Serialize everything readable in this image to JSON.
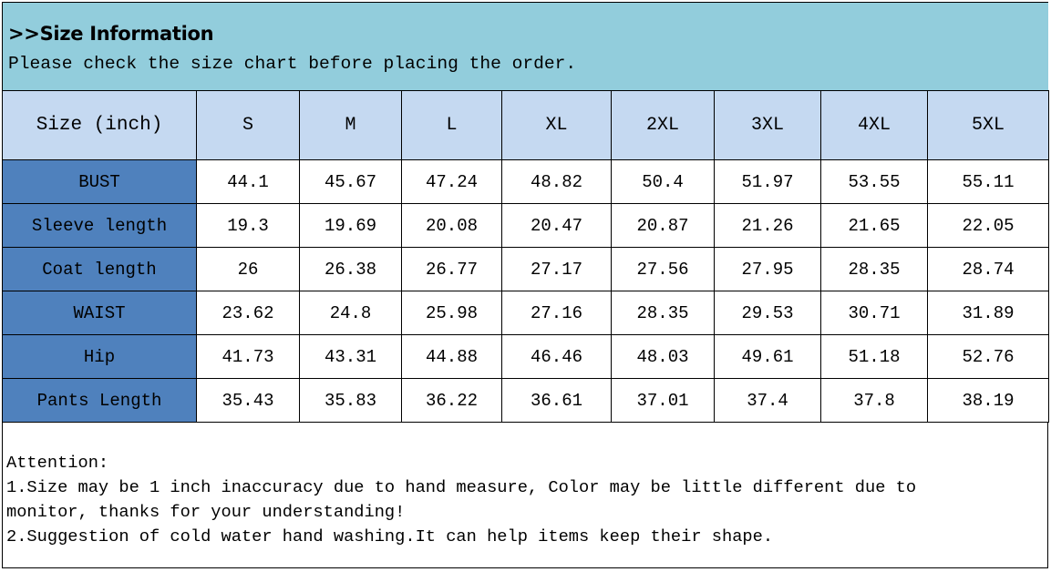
{
  "header": {
    "title": ">>Size Information",
    "subtitle": "Please check the size chart before placing the order."
  },
  "colors": {
    "banner": "#92cddc",
    "header_row": "#c5d9f1",
    "row_label": "#4f81bd"
  },
  "table": {
    "corner_label": "Size (inch)",
    "columns": [
      "S",
      "M",
      "L",
      "XL",
      "2XL",
      "3XL",
      "4XL",
      "5XL"
    ],
    "rows": [
      {
        "label": "BUST",
        "values": [
          "44.1",
          "45.67",
          "47.24",
          "48.82",
          "50.4",
          "51.97",
          "53.55",
          "55.11"
        ]
      },
      {
        "label": "Sleeve length",
        "values": [
          "19.3",
          "19.69",
          "20.08",
          "20.47",
          "20.87",
          "21.26",
          "21.65",
          "22.05"
        ]
      },
      {
        "label": "Coat length",
        "values": [
          "26",
          "26.38",
          "26.77",
          "27.17",
          "27.56",
          "27.95",
          "28.35",
          "28.74"
        ]
      },
      {
        "label": "WAIST",
        "values": [
          "23.62",
          "24.8",
          "25.98",
          "27.16",
          "28.35",
          "29.53",
          "30.71",
          "31.89"
        ]
      },
      {
        "label": "Hip",
        "values": [
          "41.73",
          "43.31",
          "44.88",
          "46.46",
          "48.03",
          "49.61",
          "51.18",
          "52.76"
        ]
      },
      {
        "label": "Pants Length",
        "values": [
          "35.43",
          "35.83",
          "36.22",
          "36.61",
          "37.01",
          "37.4",
          "37.8",
          "38.19"
        ]
      }
    ]
  },
  "notes": {
    "heading": "Attention:",
    "line1": "1.Size may be 1 inch inaccuracy due to hand measure, Color may be little different due to",
    "line1b": "monitor, thanks for your understanding!",
    "line2": "2.Suggestion of cold water hand washing.It can help items keep their shape."
  }
}
